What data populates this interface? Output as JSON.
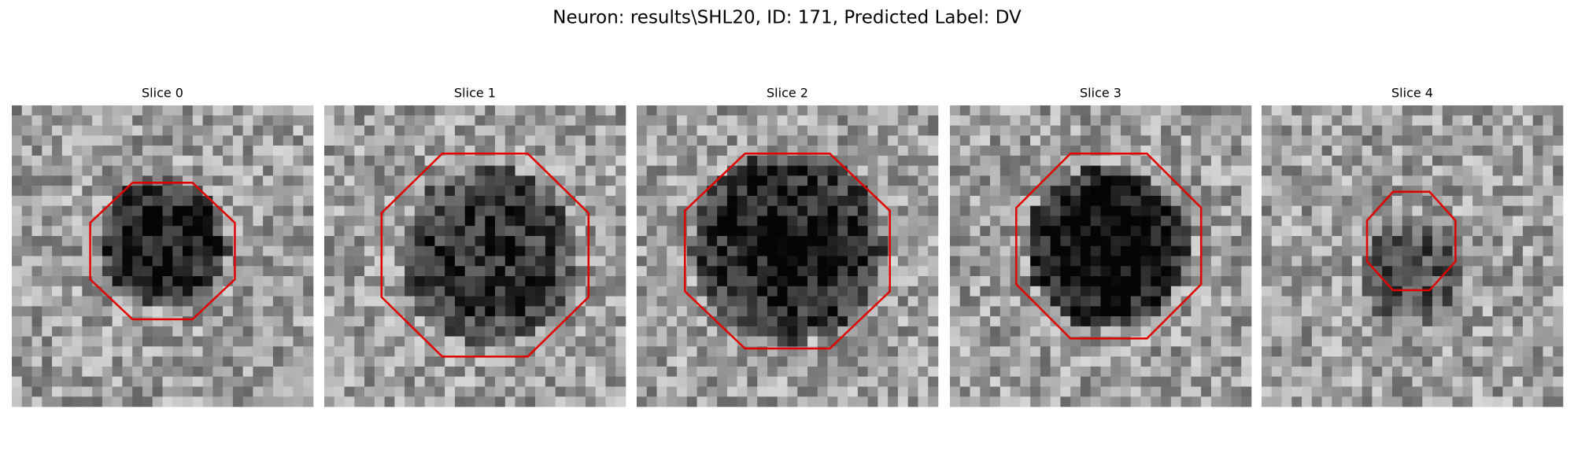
{
  "title": "Neuron: results\\SHL20, ID: 171, Predicted Label: DV",
  "panels": [
    {
      "title": "Slice 0"
    },
    {
      "title": "Slice 1"
    },
    {
      "title": "Slice 2"
    },
    {
      "title": "Slice 3"
    },
    {
      "title": "Slice 4"
    }
  ]
}
